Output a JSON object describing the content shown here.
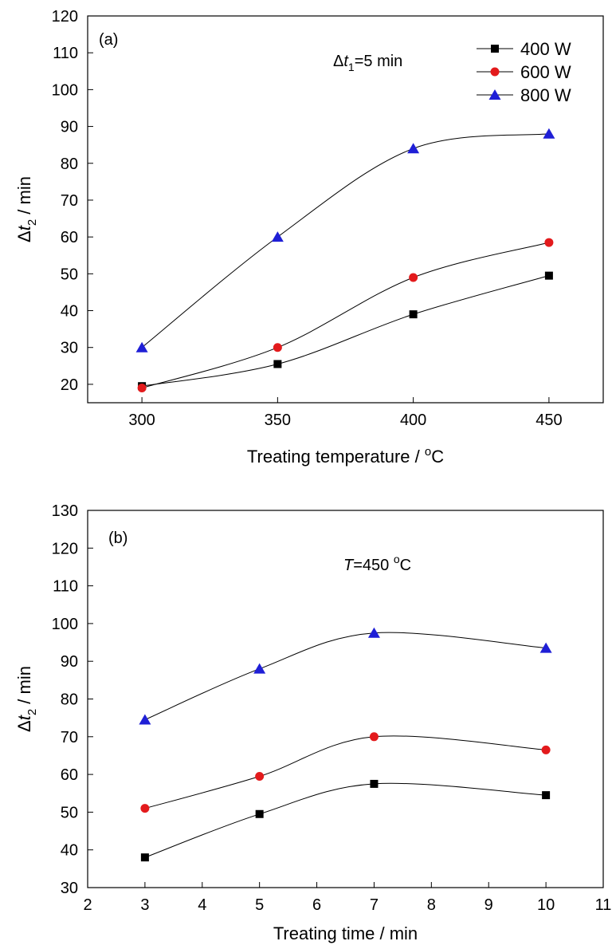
{
  "colors": {
    "s400": "#000000",
    "s600": "#e31a1c",
    "s800": "#1f1fd6",
    "line": "#000000"
  },
  "chart_data": [
    {
      "type": "line",
      "panel_label": "(a)",
      "annotation": {
        "prefix": "Δ",
        "var": "t",
        "sub": "1",
        "rest": "=5 min"
      },
      "xlabel": {
        "text": "Treating temperature / ",
        "sup": "o",
        "after": "C"
      },
      "ylabel": {
        "prefix": "Δ",
        "var": "t",
        "sub": "2",
        "rest": " / min"
      },
      "xlim": [
        280,
        470
      ],
      "ylim": [
        15,
        120
      ],
      "xticks": [
        300,
        350,
        400,
        450
      ],
      "yticks": [
        20,
        30,
        40,
        50,
        60,
        70,
        80,
        90,
        100,
        110,
        120
      ],
      "x": [
        300,
        350,
        400,
        450
      ],
      "legend_position": "top-right",
      "series": [
        {
          "name": "400 W",
          "marker": "square",
          "color": "#000000",
          "values": [
            19.5,
            25.5,
            39,
            49.5
          ]
        },
        {
          "name": "600 W",
          "marker": "circle",
          "color": "#e31a1c",
          "values": [
            19,
            30,
            49,
            58.5
          ]
        },
        {
          "name": "800 W",
          "marker": "triangle",
          "color": "#1f1fd6",
          "values": [
            30,
            60,
            84,
            88
          ]
        }
      ]
    },
    {
      "type": "line",
      "panel_label": "(b)",
      "annotation": {
        "prefix": "",
        "var": "T",
        "sub": "",
        "rest": "=450 ",
        "sup": "o",
        "after": "C"
      },
      "xlabel": {
        "text": "Treating time / min",
        "sup": "",
        "after": ""
      },
      "ylabel": {
        "prefix": "Δ",
        "var": "t",
        "sub": "2",
        "rest": " / min"
      },
      "xlim": [
        2,
        11
      ],
      "ylim": [
        30,
        130
      ],
      "xticks": [
        2,
        3,
        4,
        5,
        6,
        7,
        8,
        9,
        10,
        11
      ],
      "yticks": [
        30,
        40,
        50,
        60,
        70,
        80,
        90,
        100,
        110,
        120,
        130
      ],
      "x": [
        3,
        5,
        7,
        10
      ],
      "series": [
        {
          "name": "400 W",
          "marker": "square",
          "color": "#000000",
          "values": [
            38,
            49.5,
            57.5,
            54.5
          ]
        },
        {
          "name": "600 W",
          "marker": "circle",
          "color": "#e31a1c",
          "values": [
            51,
            59.5,
            70,
            66.5
          ]
        },
        {
          "name": "800 W",
          "marker": "triangle",
          "color": "#1f1fd6",
          "values": [
            74.5,
            88,
            97.5,
            93.5
          ]
        }
      ]
    }
  ]
}
